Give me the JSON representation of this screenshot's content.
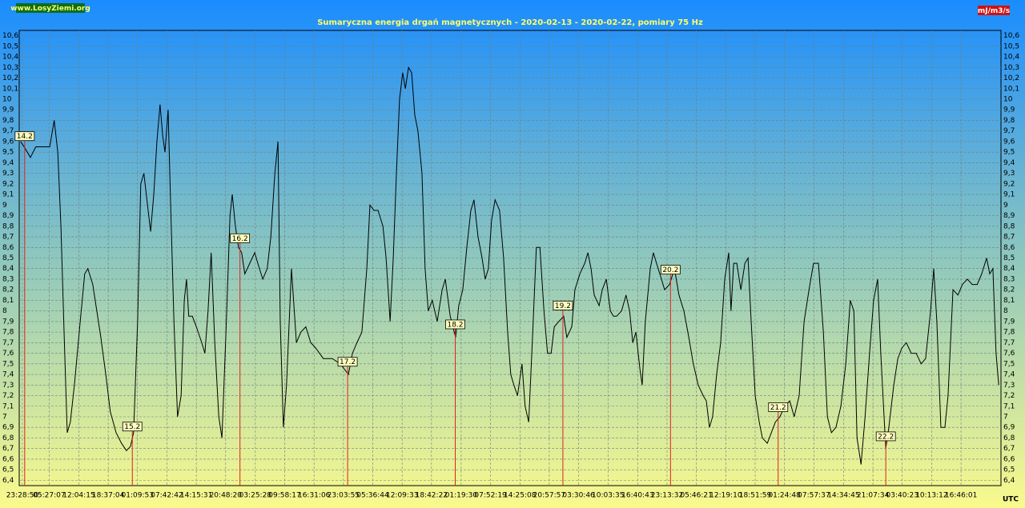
{
  "chart_data": {
    "type": "line",
    "title": "Sumaryczna energia drgań magnetycznych - 2020-02-13 - 2020-02-22, pomiary 75 Hz",
    "site": "www.LosyZiemi.org",
    "units_label": "mJ/m3/s",
    "timezone_label": "UTC",
    "color": "#000000",
    "marker_color": "#e02020",
    "grid": true,
    "xlim": [
      -0.7,
      218.2
    ],
    "ylim": [
      6.35,
      10.65
    ],
    "yticks": [
      {
        "value": 6.4,
        "label": "6,4"
      },
      {
        "value": 6.5,
        "label": "6,5"
      },
      {
        "value": 6.6,
        "label": "6,6"
      },
      {
        "value": 6.7,
        "label": "6,7"
      },
      {
        "value": 6.8,
        "label": "6,8"
      },
      {
        "value": 6.9,
        "label": "6,9"
      },
      7,
      {
        "value": 7.1,
        "label": "7,1"
      },
      {
        "value": 7.2,
        "label": "7,2"
      },
      {
        "value": 7.3,
        "label": "7,3"
      },
      {
        "value": 7.4,
        "label": "7,4"
      },
      {
        "value": 7.5,
        "label": "7,5"
      },
      {
        "value": 7.6,
        "label": "7,6"
      },
      {
        "value": 7.7,
        "label": "7,7"
      },
      {
        "value": 7.8,
        "label": "7,8"
      },
      {
        "value": 7.9,
        "label": "7,9"
      },
      8,
      {
        "value": 8.1,
        "label": "8,1"
      },
      {
        "value": 8.2,
        "label": "8,2"
      },
      {
        "value": 8.3,
        "label": "8,3"
      },
      {
        "value": 8.4,
        "label": "8,4"
      },
      {
        "value": 8.5,
        "label": "8,5"
      },
      {
        "value": 8.6,
        "label": "8,6"
      },
      {
        "value": 8.7,
        "label": "8,7"
      },
      {
        "value": 8.8,
        "label": "8,8"
      },
      {
        "value": 8.9,
        "label": "8,9"
      },
      9,
      {
        "value": 9.1,
        "label": "9,1"
      },
      {
        "value": 9.2,
        "label": "9,2"
      },
      {
        "value": 9.3,
        "label": "9,3"
      },
      {
        "value": 9.4,
        "label": "9,4"
      },
      {
        "value": 9.5,
        "label": "9,5"
      },
      {
        "value": 9.6,
        "label": "9,6"
      },
      {
        "value": 9.7,
        "label": "9,7"
      },
      {
        "value": 9.8,
        "label": "9,8"
      },
      {
        "value": 9.9,
        "label": "9,9"
      },
      10,
      {
        "value": 10.1,
        "label": "10,1"
      },
      {
        "value": 10.2,
        "label": "10,2"
      },
      {
        "value": 10.3,
        "label": "10,3"
      },
      {
        "value": 10.4,
        "label": "10,4"
      },
      {
        "value": 10.5,
        "label": "10,5"
      },
      {
        "value": 10.6,
        "label": "10,6"
      }
    ],
    "xticks": [
      {
        "value": 0,
        "label": "23:28:50"
      },
      {
        "value": 5.97,
        "label": "05:27:07"
      },
      {
        "value": 12.59,
        "label": "12:04:15"
      },
      {
        "value": 19.14,
        "label": "18:37:04"
      },
      {
        "value": 25.68,
        "label": "01:09:53"
      },
      {
        "value": 32.23,
        "label": "07:42:42"
      },
      {
        "value": 38.78,
        "label": "14:15:31"
      },
      {
        "value": 45.33,
        "label": "20:48:20"
      },
      {
        "value": 51.94,
        "label": "03:25:28"
      },
      {
        "value": 58.49,
        "label": "09:58:17"
      },
      {
        "value": 65.04,
        "label": "16:31:06"
      },
      {
        "value": 71.58,
        "label": "23:03:55"
      },
      {
        "value": 78.13,
        "label": "05:36:44"
      },
      {
        "value": 84.68,
        "label": "12:09:33"
      },
      {
        "value": 91.22,
        "label": "18:42:22"
      },
      {
        "value": 97.84,
        "label": "01:19:30"
      },
      {
        "value": 104.39,
        "label": "07:52:19"
      },
      {
        "value": 110.94,
        "label": "14:25:08"
      },
      {
        "value": 117.48,
        "label": "20:57:57"
      },
      {
        "value": 124.03,
        "label": "03:30:46"
      },
      {
        "value": 130.58,
        "label": "10:03:35"
      },
      {
        "value": 137.2,
        "label": "16:40:43"
      },
      {
        "value": 143.74,
        "label": "23:13:32"
      },
      {
        "value": 150.29,
        "label": "05:46:21"
      },
      {
        "value": 156.84,
        "label": "12:19:10"
      },
      {
        "value": 163.39,
        "label": "18:51:59"
      },
      {
        "value": 169.93,
        "label": "01:24:48"
      },
      {
        "value": 176.48,
        "label": "07:57:37"
      },
      {
        "value": 183.1,
        "label": "14:34:45"
      },
      {
        "value": 189.65,
        "label": "21:07:34"
      },
      {
        "value": 196.19,
        "label": "03:40:23"
      },
      {
        "value": 202.74,
        "label": "10:13:12"
      },
      {
        "value": 209.29,
        "label": "16:46:01"
      }
    ],
    "day_markers": [
      {
        "label": "14.2",
        "x": 0.52
      },
      {
        "label": "15.2",
        "x": 24.52
      },
      {
        "label": "16.2",
        "x": 48.52
      },
      {
        "label": "17.2",
        "x": 72.52
      },
      {
        "label": "18.2",
        "x": 96.52
      },
      {
        "label": "19.2",
        "x": 120.52
      },
      {
        "label": "20.2",
        "x": 144.52
      },
      {
        "label": "21.2",
        "x": 168.52
      },
      {
        "label": "22.2",
        "x": 192.52
      }
    ],
    "x": [
      -0.4,
      0.4,
      1.8,
      3.0,
      4.8,
      6.1,
      7.1,
      7.9,
      8.6,
      9.3,
      10.0,
      10.7,
      11.6,
      12.9,
      13.9,
      14.6,
      15.7,
      16.6,
      17.5,
      18.6,
      19.6,
      20.9,
      22.1,
      23.2,
      24.1,
      24.8,
      25.7,
      26.4,
      27.1,
      27.9,
      28.6,
      29.3,
      30.0,
      30.7,
      31.3,
      31.8,
      32.5,
      33.0,
      33.8,
      34.6,
      35.4,
      36.1,
      36.6,
      37.1,
      37.9,
      38.8,
      40.0,
      40.7,
      41.4,
      42.1,
      42.9,
      43.8,
      44.5,
      45.4,
      46.3,
      46.8,
      47.5,
      48.2,
      48.9,
      49.6,
      50.7,
      51.8,
      52.5,
      53.6,
      54.6,
      55.4,
      56.3,
      57.0,
      57.5,
      58.2,
      58.9,
      60.0,
      61.1,
      62.1,
      63.2,
      64.3,
      65.4,
      67.1,
      69.1,
      70.9,
      72.7,
      73.6,
      74.6,
      75.7,
      76.8,
      77.5,
      78.4,
      79.3,
      80.4,
      81.1,
      82.0,
      82.7,
      83.4,
      84.1,
      84.8,
      85.4,
      86.1,
      86.8,
      87.5,
      88.2,
      89.1,
      89.8,
      90.5,
      91.4,
      92.5,
      93.6,
      94.3,
      95.4,
      96.6,
      97.3,
      98.2,
      99.1,
      100.0,
      100.7,
      101.6,
      102.5,
      103.2,
      103.9,
      104.6,
      105.4,
      106.4,
      107.3,
      108.2,
      108.9,
      109.6,
      110.4,
      111.4,
      112.1,
      112.9,
      113.8,
      114.6,
      115.4,
      116.3,
      117.1,
      117.9,
      118.6,
      119.6,
      120.7,
      121.4,
      122.5,
      123.2,
      124.3,
      125.4,
      126.1,
      126.8,
      127.5,
      128.6,
      129.3,
      130.2,
      131.1,
      131.8,
      132.5,
      133.6,
      134.6,
      135.4,
      136.1,
      136.8,
      137.7,
      138.2,
      138.9,
      140.0,
      140.7,
      141.4,
      142.5,
      143.2,
      144.3,
      145.4,
      146.4,
      147.5,
      148.6,
      149.6,
      150.7,
      151.8,
      152.5,
      153.2,
      153.9,
      154.8,
      155.7,
      156.6,
      157.5,
      158.0,
      158.6,
      159.3,
      160.2,
      161.1,
      161.8,
      162.5,
      163.4,
      164.3,
      165.0,
      166.1,
      167.0,
      167.9,
      168.9,
      170.0,
      171.1,
      172.1,
      173.2,
      174.3,
      175.4,
      176.4,
      177.5,
      178.6,
      179.5,
      180.4,
      181.4,
      182.5,
      183.6,
      184.6,
      185.4,
      186.1,
      187.0,
      187.9,
      188.9,
      189.8,
      190.7,
      191.4,
      192.5,
      193.2,
      194.3,
      195.2,
      196.1,
      197.1,
      198.2,
      199.3,
      200.4,
      201.4,
      202.5,
      203.2,
      203.9,
      204.8,
      205.7,
      206.4,
      207.5,
      208.6,
      209.6,
      210.7,
      211.8,
      212.9,
      213.9,
      215.0,
      215.7,
      216.4,
      217.1,
      217.7
    ],
    "values": [
      9.6,
      9.55,
      9.45,
      9.55,
      9.55,
      9.55,
      9.8,
      9.5,
      8.8,
      7.8,
      6.85,
      6.95,
      7.3,
      7.9,
      8.35,
      8.4,
      8.25,
      8.0,
      7.75,
      7.4,
      7.05,
      6.85,
      6.75,
      6.68,
      6.72,
      6.85,
      7.9,
      9.2,
      9.3,
      9.0,
      8.75,
      9.1,
      9.6,
      9.95,
      9.65,
      9.5,
      9.9,
      9.1,
      7.9,
      7.0,
      7.2,
      8.1,
      8.3,
      7.95,
      7.95,
      7.85,
      7.7,
      7.6,
      8.0,
      8.55,
      7.7,
      7.0,
      6.8,
      7.8,
      8.9,
      9.1,
      8.8,
      8.6,
      8.55,
      8.35,
      8.45,
      8.55,
      8.45,
      8.3,
      8.4,
      8.7,
      9.3,
      9.6,
      7.9,
      6.9,
      7.3,
      8.4,
      7.7,
      7.8,
      7.85,
      7.7,
      7.65,
      7.55,
      7.55,
      7.5,
      7.4,
      7.6,
      7.7,
      7.8,
      8.4,
      9.0,
      8.95,
      8.95,
      8.8,
      8.5,
      7.9,
      8.5,
      9.3,
      10.0,
      10.25,
      10.1,
      10.3,
      10.25,
      9.85,
      9.7,
      9.3,
      8.4,
      8.0,
      8.1,
      7.9,
      8.2,
      8.3,
      7.95,
      7.75,
      8.05,
      8.2,
      8.6,
      8.95,
      9.05,
      8.7,
      8.5,
      8.3,
      8.4,
      8.85,
      9.05,
      8.95,
      8.5,
      7.8,
      7.4,
      7.3,
      7.2,
      7.5,
      7.1,
      6.95,
      7.8,
      8.6,
      8.6,
      8.0,
      7.6,
      7.6,
      7.85,
      7.9,
      7.95,
      7.75,
      7.85,
      8.2,
      8.35,
      8.45,
      8.55,
      8.4,
      8.15,
      8.05,
      8.2,
      8.3,
      8.0,
      7.95,
      7.95,
      8.0,
      8.15,
      8.0,
      7.7,
      7.8,
      7.45,
      7.3,
      7.9,
      8.4,
      8.55,
      8.45,
      8.3,
      8.2,
      8.25,
      8.4,
      8.15,
      8.0,
      7.75,
      7.5,
      7.3,
      7.2,
      7.15,
      6.9,
      7.0,
      7.4,
      7.7,
      8.3,
      8.55,
      8.0,
      8.45,
      8.45,
      8.2,
      8.45,
      8.5,
      7.9,
      7.2,
      6.95,
      6.8,
      6.75,
      6.85,
      6.95,
      7.0,
      7.1,
      7.15,
      7.0,
      7.2,
      7.9,
      8.2,
      8.45,
      8.45,
      7.8,
      7.0,
      6.85,
      6.9,
      7.1,
      7.5,
      8.1,
      8.0,
      6.8,
      6.55,
      7.0,
      7.6,
      8.1,
      8.3,
      7.6,
      6.7,
      6.9,
      7.3,
      7.55,
      7.65,
      7.7,
      7.6,
      7.6,
      7.5,
      7.55,
      8.0,
      8.4,
      7.9,
      6.9,
      6.9,
      7.2,
      8.2,
      8.15,
      8.25,
      8.3,
      8.25,
      8.25,
      8.35,
      8.5,
      8.35,
      8.4,
      7.6,
      7.3
    ]
  }
}
